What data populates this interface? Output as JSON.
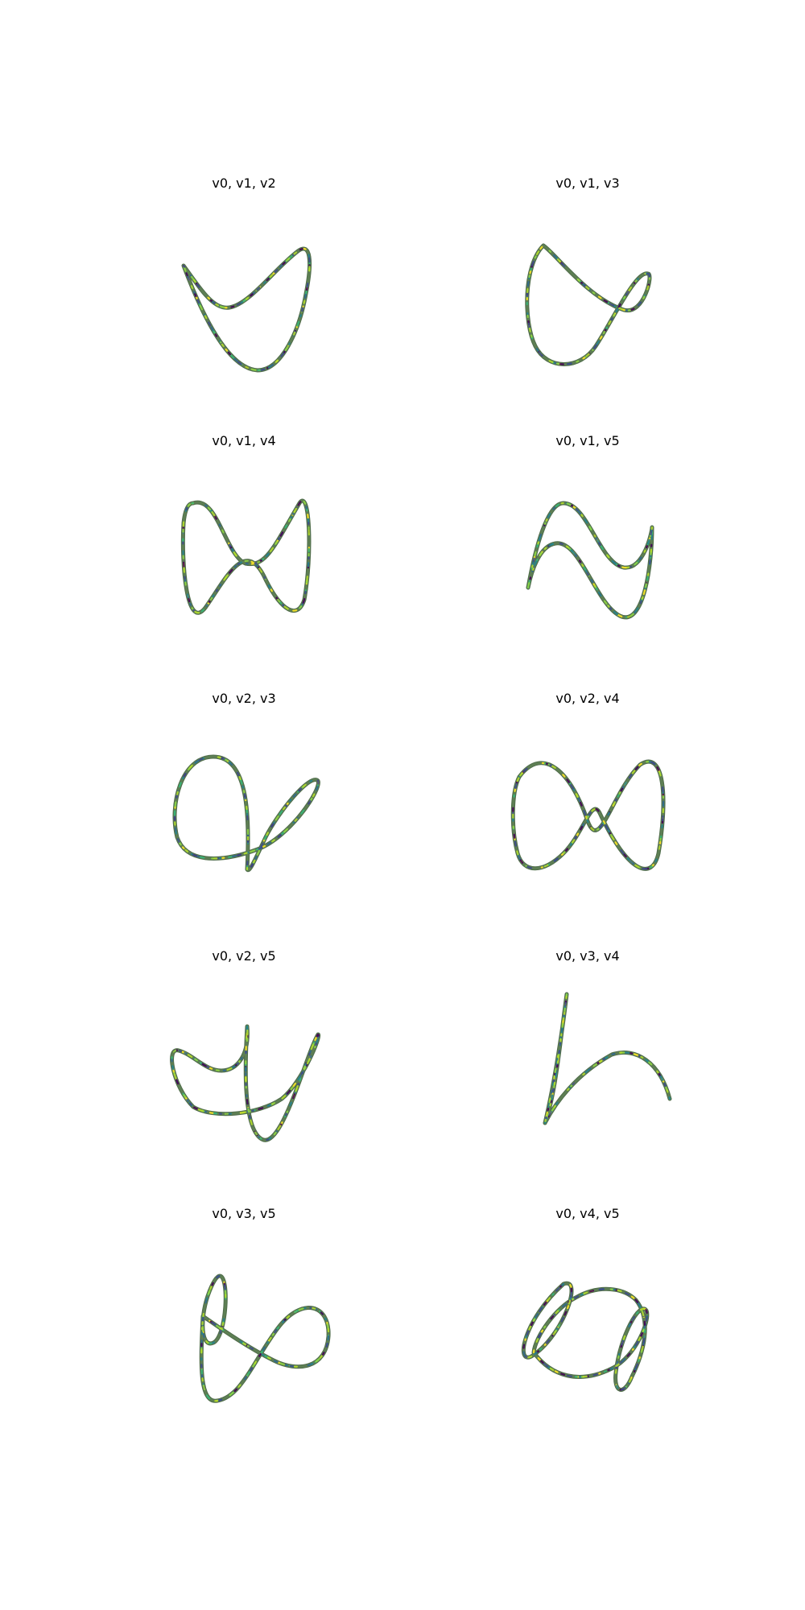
{
  "figure": {
    "background": "#ffffff"
  },
  "colors": {
    "curve_base": "#5e7f54",
    "curve_outline": "#4f6c4a",
    "speckle": [
      "#fde725",
      "#35b779",
      "#31688e",
      "#440154",
      "#26828e",
      "#90d743",
      "#3e4a89",
      "#b5de2b"
    ]
  },
  "chart_data": [
    {
      "type": "line",
      "subtype": "3d-projection",
      "title": "v0, v1, v2",
      "axes": "hidden",
      "grid": false,
      "legend": "none"
    },
    {
      "type": "line",
      "subtype": "3d-projection",
      "title": "v0, v1, v3",
      "axes": "hidden",
      "grid": false,
      "legend": "none"
    },
    {
      "type": "line",
      "subtype": "3d-projection",
      "title": "v0, v1, v4",
      "axes": "hidden",
      "grid": false,
      "legend": "none"
    },
    {
      "type": "line",
      "subtype": "3d-projection",
      "title": "v0, v1, v5",
      "axes": "hidden",
      "grid": false,
      "legend": "none"
    },
    {
      "type": "line",
      "subtype": "3d-projection",
      "title": "v0, v2, v3",
      "axes": "hidden",
      "grid": false,
      "legend": "none"
    },
    {
      "type": "line",
      "subtype": "3d-projection",
      "title": "v0, v2, v4",
      "axes": "hidden",
      "grid": false,
      "legend": "none"
    },
    {
      "type": "line",
      "subtype": "3d-projection",
      "title": "v0, v2, v5",
      "axes": "hidden",
      "grid": false,
      "legend": "none"
    },
    {
      "type": "line",
      "subtype": "3d-projection",
      "title": "v0, v3, v4",
      "axes": "hidden",
      "grid": false,
      "legend": "none"
    },
    {
      "type": "line",
      "subtype": "3d-projection",
      "title": "v0, v3, v5",
      "axes": "hidden",
      "grid": false,
      "legend": "none"
    },
    {
      "type": "line",
      "subtype": "3d-projection",
      "title": "v0, v4, v5",
      "axes": "hidden",
      "grid": false,
      "legend": "none"
    }
  ]
}
